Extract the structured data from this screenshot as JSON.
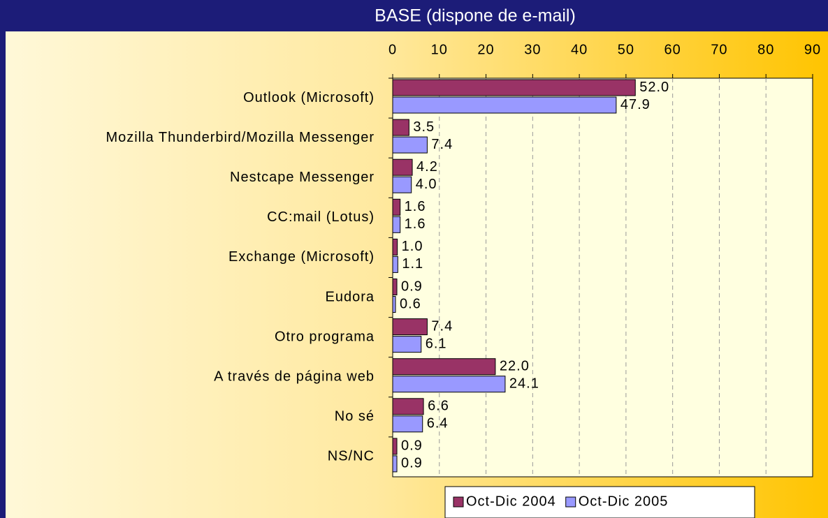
{
  "chart_data": {
    "type": "hbar",
    "title": "BASE (dispone de e-mail)",
    "categories": [
      "Outlook (Microsoft)",
      "Mozilla Thunderbird/Mozilla Messenger",
      "Nestcape Messenger",
      "CC:mail (Lotus)",
      "Exchange (Microsoft)",
      "Eudora",
      "Otro programa",
      "A través de página web",
      "No sé",
      "NS/NC"
    ],
    "series": [
      {
        "name": "Oct-Dic 2004",
        "color": "#993366",
        "values": [
          52,
          3.5,
          4.2,
          1.6,
          1,
          0.9,
          7.4,
          22,
          6.6,
          0.9
        ],
        "value_labels": [
          "52.0",
          "3.5",
          "4.2",
          "1.6",
          "1.0",
          "0.9",
          "7.4",
          "22.0",
          "6.6",
          "0.9"
        ]
      },
      {
        "name": "Oct-Dic 2005",
        "color": "#9999ff",
        "values": [
          47.9,
          7.4,
          4,
          1.6,
          1.1,
          0.6,
          6.1,
          24.1,
          6.4,
          0.9
        ],
        "value_labels": [
          "47.9",
          "7.4",
          "4.0",
          "1.6",
          "1.1",
          "0.6",
          "6.1",
          "24.1",
          "6.4",
          "0.9"
        ]
      }
    ],
    "xlim": [
      0,
      90
    ],
    "xticks": [
      0,
      10,
      20,
      30,
      40,
      50,
      60,
      70,
      80,
      90
    ],
    "grid": true,
    "legend": "bottom"
  }
}
